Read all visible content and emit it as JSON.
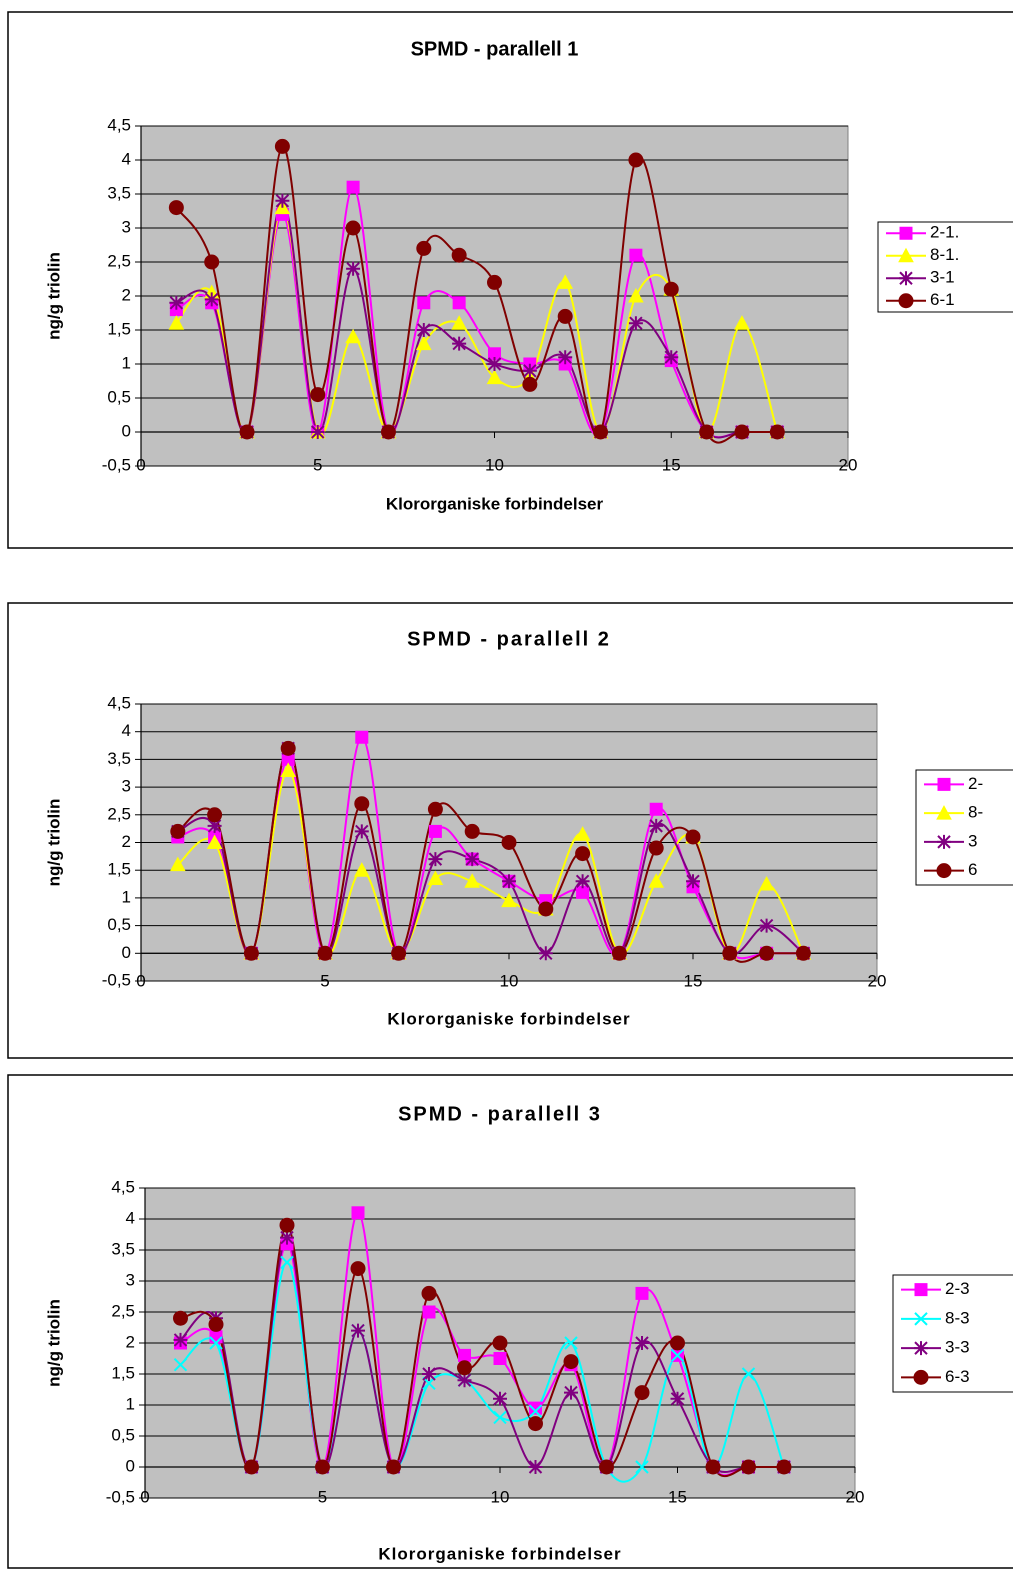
{
  "chart_data": [
    {
      "type": "line",
      "title": "SPMD - parallell 1",
      "x_label": "Klororganiske forbindelser",
      "y_label": "ng/g triolin",
      "x": [
        1,
        2,
        3,
        4,
        5,
        6,
        7,
        8,
        9,
        10,
        11,
        12,
        13,
        14,
        15,
        16,
        17,
        18
      ],
      "series": [
        {
          "name": "2-1.",
          "color": "#ff00ff",
          "marker": "square",
          "values": [
            1.8,
            1.9,
            0,
            3.2,
            0,
            3.6,
            0,
            1.9,
            1.9,
            1.15,
            1.0,
            1.0,
            0,
            2.6,
            1.05,
            0,
            0,
            0
          ]
        },
        {
          "name": "8-1.",
          "color": "#ffff00",
          "marker": "triangle",
          "values": [
            1.6,
            2.05,
            0,
            3.3,
            0,
            1.4,
            0,
            1.3,
            1.6,
            0.8,
            0.8,
            2.2,
            0,
            2.0,
            2.1,
            0,
            1.6,
            0
          ]
        },
        {
          "name": "3-1",
          "color": "#800080",
          "marker": "star",
          "values": [
            1.9,
            1.95,
            0,
            3.4,
            0,
            2.4,
            0,
            1.5,
            1.3,
            1.0,
            0.9,
            1.1,
            0,
            1.6,
            1.1,
            0,
            0,
            0
          ]
        },
        {
          "name": "6-1",
          "color": "#800000",
          "marker": "circle",
          "values": [
            3.3,
            2.5,
            0,
            4.2,
            0.55,
            3.0,
            0,
            2.7,
            2.6,
            2.2,
            0.7,
            1.7,
            0,
            4.0,
            2.1,
            0,
            0,
            0
          ]
        }
      ],
      "xlim": [
        0,
        20
      ],
      "xticks": [
        0,
        5,
        10,
        15,
        20
      ],
      "ylim": [
        -0.5,
        4.5
      ],
      "yticks": [
        {
          "value": -0.5,
          "label": "-0,5"
        },
        0,
        {
          "value": 0.5,
          "label": "0,5"
        },
        1,
        {
          "value": 1.5,
          "label": "1,5"
        },
        2,
        {
          "value": 2.5,
          "label": "2,5"
        },
        3,
        {
          "value": 3.5,
          "label": "3,5"
        },
        4,
        {
          "value": 4.5,
          "label": "4,5"
        }
      ],
      "grid": true,
      "smooth": true,
      "legend": "right",
      "plot_background": "#c0c0c0"
    },
    {
      "type": "line",
      "title": "SPMD - parallell 2",
      "x_label": "Klororganiske forbindelser",
      "y_label": "ng/g triolin",
      "x": [
        1,
        2,
        3,
        4,
        5,
        6,
        7,
        8,
        9,
        10,
        11,
        12,
        13,
        14,
        15,
        16,
        17,
        18
      ],
      "series": [
        {
          "name": "2-",
          "color": "#ff00ff",
          "marker": "square",
          "values": [
            2.1,
            2.1,
            0,
            3.5,
            0,
            3.9,
            0,
            2.2,
            1.7,
            1.3,
            0.95,
            1.1,
            0,
            2.6,
            1.2,
            0,
            0,
            0
          ]
        },
        {
          "name": "8-",
          "color": "#ffff00",
          "marker": "triangle",
          "values": [
            1.6,
            2.0,
            0,
            3.3,
            0,
            1.5,
            0,
            1.35,
            1.3,
            0.95,
            0.8,
            2.15,
            0,
            1.3,
            2.1,
            0,
            1.25,
            0
          ]
        },
        {
          "name": "3",
          "color": "#800080",
          "marker": "star",
          "values": [
            2.2,
            2.3,
            0,
            3.7,
            0,
            2.2,
            0,
            1.7,
            1.7,
            1.3,
            0,
            1.3,
            0,
            2.3,
            1.3,
            0,
            0.5,
            0
          ]
        },
        {
          "name": "6",
          "color": "#800000",
          "marker": "circle",
          "values": [
            2.2,
            2.5,
            0,
            3.7,
            0,
            2.7,
            0,
            2.6,
            2.2,
            2.0,
            0.8,
            1.8,
            0,
            1.9,
            2.1,
            0,
            0,
            0
          ]
        }
      ],
      "xlim": [
        0,
        20
      ],
      "xticks": [
        0,
        5,
        10,
        15,
        20
      ],
      "ylim": [
        -0.5,
        4.5
      ],
      "yticks": [
        {
          "value": -0.5,
          "label": "-0,5"
        },
        0,
        {
          "value": 0.5,
          "label": "0,5"
        },
        1,
        {
          "value": 1.5,
          "label": "1,5"
        },
        2,
        {
          "value": 2.5,
          "label": "2,5"
        },
        3,
        {
          "value": 3.5,
          "label": "3,5"
        },
        4,
        {
          "value": 4.5,
          "label": "4,5"
        }
      ],
      "grid": true,
      "smooth": true,
      "legend": "right",
      "plot_background": "#c0c0c0"
    },
    {
      "type": "line",
      "title": "SPMD - parallell 3",
      "x_label": "Klororganiske forbindelser",
      "y_label": "ng/g triolin",
      "x": [
        1,
        2,
        3,
        4,
        5,
        6,
        7,
        8,
        9,
        10,
        11,
        12,
        13,
        14,
        15,
        16,
        17,
        18
      ],
      "series": [
        {
          "name": "2-3",
          "color": "#ff00ff",
          "marker": "square",
          "values": [
            2.0,
            2.1,
            0,
            3.6,
            0,
            4.1,
            0,
            2.5,
            1.8,
            1.75,
            0.95,
            1.65,
            0,
            2.8,
            1.8,
            0,
            0,
            0
          ]
        },
        {
          "name": "8-3",
          "color": "#00ffff",
          "marker": "x",
          "values": [
            1.65,
            2.0,
            0,
            3.3,
            0,
            2.2,
            0,
            1.35,
            1.4,
            0.8,
            0.9,
            2.0,
            0,
            0,
            1.8,
            0,
            1.5,
            0
          ]
        },
        {
          "name": "3-3",
          "color": "#800080",
          "marker": "star",
          "values": [
            2.05,
            2.4,
            0,
            3.7,
            0,
            2.2,
            0,
            1.5,
            1.4,
            1.1,
            0,
            1.2,
            0,
            2.0,
            1.1,
            0,
            0,
            0
          ]
        },
        {
          "name": "6-3",
          "color": "#800000",
          "marker": "circle",
          "values": [
            2.4,
            2.3,
            0,
            3.9,
            0,
            3.2,
            0,
            2.8,
            1.6,
            2.0,
            0.7,
            1.7,
            0,
            1.2,
            2.0,
            0,
            0,
            0
          ]
        }
      ],
      "xlim": [
        0,
        20
      ],
      "xticks": [
        0,
        5,
        10,
        15,
        20
      ],
      "ylim": [
        -0.5,
        4.5
      ],
      "yticks": [
        {
          "value": -0.5,
          "label": "-0,5"
        },
        0,
        {
          "value": 0.5,
          "label": "0,5"
        },
        1,
        {
          "value": 1.5,
          "label": "1,5"
        },
        2,
        {
          "value": 2.5,
          "label": "2,5"
        },
        3,
        {
          "value": 3.5,
          "label": "3,5"
        },
        4,
        {
          "value": 4.5,
          "label": "4,5"
        }
      ],
      "grid": true,
      "smooth": true,
      "legend": "right",
      "plot_background": "#c0c0c0"
    }
  ]
}
